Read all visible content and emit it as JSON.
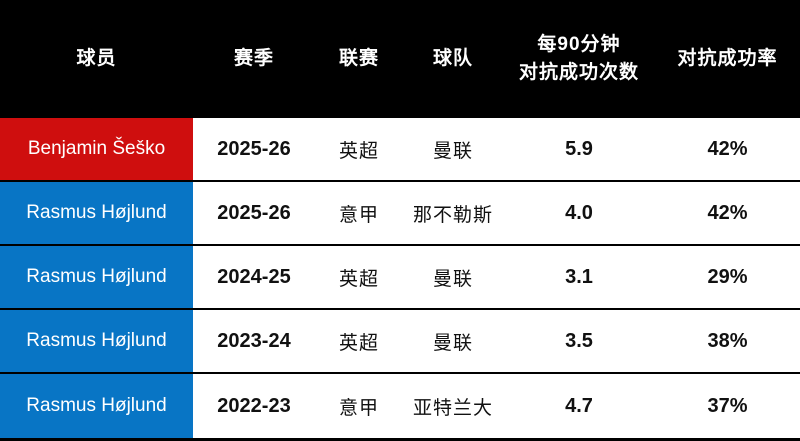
{
  "colors": {
    "header_bg": "#000000",
    "sesko_red": "#cf0e0e",
    "hojlund_blue": "#0875c5",
    "separator": "#000000"
  },
  "table": {
    "columns": [
      {
        "label": "球员"
      },
      {
        "label": "赛季"
      },
      {
        "label": "联赛"
      },
      {
        "label": "球队"
      },
      {
        "label": "每90分钟\n对抗成功次数"
      },
      {
        "label": "对抗成功率"
      }
    ],
    "rows": [
      {
        "player": "Benjamin Šeško",
        "player_color": "#cf0e0e",
        "season": "2025-26",
        "league": "英超",
        "team": "曼联",
        "duels_won_per90": "5.9",
        "duel_success_rate": "42%"
      },
      {
        "player": "Rasmus Højlund",
        "player_color": "#0875c5",
        "season": "2025-26",
        "league": "意甲",
        "team": "那不勒斯",
        "duels_won_per90": "4.0",
        "duel_success_rate": "42%"
      },
      {
        "player": "Rasmus Højlund",
        "player_color": "#0875c5",
        "season": "2024-25",
        "league": "英超",
        "team": "曼联",
        "duels_won_per90": "3.1",
        "duel_success_rate": "29%"
      },
      {
        "player": "Rasmus Højlund",
        "player_color": "#0875c5",
        "season": "2023-24",
        "league": "英超",
        "team": "曼联",
        "duels_won_per90": "3.5",
        "duel_success_rate": "38%"
      },
      {
        "player": "Rasmus Højlund",
        "player_color": "#0875c5",
        "season": "2022-23",
        "league": "意甲",
        "team": "亚特兰大",
        "duels_won_per90": "4.7",
        "duel_success_rate": "37%"
      }
    ]
  },
  "chart_data": {
    "type": "table",
    "title": "",
    "columns": [
      "球员",
      "赛季",
      "联赛",
      "球队",
      "每90分钟对抗成功次数",
      "对抗成功率"
    ],
    "rows": [
      [
        "Benjamin Šeško",
        "2025-26",
        "英超",
        "曼联",
        5.9,
        "42%"
      ],
      [
        "Rasmus Højlund",
        "2025-26",
        "意甲",
        "那不勒斯",
        4.0,
        "42%"
      ],
      [
        "Rasmus Højlund",
        "2024-25",
        "英超",
        "曼联",
        3.1,
        "29%"
      ],
      [
        "Rasmus Højlund",
        "2023-24",
        "英超",
        "曼联",
        3.5,
        "38%"
      ],
      [
        "Rasmus Højlund",
        "2022-23",
        "意甲",
        "亚特兰大",
        4.7,
        "37%"
      ]
    ]
  }
}
